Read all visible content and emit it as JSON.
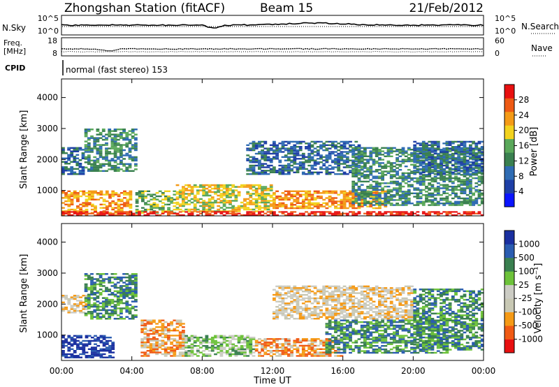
{
  "header": {
    "station": "Zhongshan Station (fitACF)",
    "beam": "Beam 15",
    "date": "21/Feb/2012"
  },
  "status": {
    "nsky_label": "N.Sky",
    "nsky_ticks": [
      "10^5",
      "10^0"
    ],
    "nsearch_label": "N.Search",
    "nsearch_ticks": [
      "10^5",
      "10^0"
    ],
    "freq_label_1": "Freq.",
    "freq_label_2": "[MHz]",
    "freq_ticks": [
      "18",
      "8"
    ],
    "nave_label": "Nave",
    "nave_ticks": [
      "60",
      "0"
    ],
    "cpid_label": "CPID",
    "cpid_text": "normal (fast stereo) 153"
  },
  "colors": {
    "power": [
      "#0a14ff",
      "#1e3fa6",
      "#2f6cb3",
      "#3a8050",
      "#5aa85a",
      "#f2d21e",
      "#f49a16",
      "#ee5a14",
      "#e81010"
    ],
    "velocity": [
      "#e81010",
      "#f05a14",
      "#f59a16",
      "#c8c8b4",
      "#ccccc4",
      "#6dc23a",
      "#3a8050",
      "#2a5cb0",
      "#1a2fa0"
    ]
  },
  "chart_data": [
    {
      "type": "heatmap",
      "quantity": "Power",
      "xlabel": "",
      "ylabel": "Slant Range [km]",
      "x_ticks": [
        "00:00",
        "04:00",
        "08:00",
        "12:00",
        "16:00",
        "20:00",
        "00:00"
      ],
      "y_ticks": [
        1000,
        2000,
        3000,
        4000
      ],
      "ylim": [
        180,
        4600
      ],
      "xlim_hours": [
        0,
        24
      ],
      "colorbar": {
        "label": "Power [dB]",
        "range": [
          0,
          32
        ],
        "ticks": [
          "4",
          "8",
          "12",
          "16",
          "20",
          "24",
          "28"
        ]
      },
      "regions": [
        {
          "t0": 0.0,
          "t1": 4.0,
          "r0": 250,
          "r1": 1000,
          "level": 6
        },
        {
          "t0": 0.0,
          "t1": 1.3,
          "r0": 1500,
          "r1": 2400,
          "level": 2
        },
        {
          "t0": 1.3,
          "t1": 4.3,
          "r0": 1600,
          "r1": 3000,
          "level": 3
        },
        {
          "t0": 4.2,
          "t1": 6.5,
          "r0": 250,
          "r1": 1000,
          "level": 4
        },
        {
          "t0": 6.5,
          "t1": 12.0,
          "r0": 300,
          "r1": 1200,
          "level": 5
        },
        {
          "t0": 10.5,
          "t1": 17.0,
          "r0": 1500,
          "r1": 2600,
          "level": 2
        },
        {
          "t0": 12.0,
          "t1": 18.5,
          "r0": 400,
          "r1": 1000,
          "level": 6
        },
        {
          "t0": 16.5,
          "t1": 24.0,
          "r0": 500,
          "r1": 2400,
          "level": 3
        },
        {
          "t0": 20.0,
          "t1": 24.0,
          "r0": 1500,
          "r1": 2600,
          "level": 2
        },
        {
          "t0": 0.0,
          "t1": 24.0,
          "r0": 180,
          "r1": 330,
          "level": 8
        }
      ]
    },
    {
      "type": "heatmap",
      "quantity": "Velocity",
      "xlabel": "Time UT",
      "ylabel": "Slant Range [km]",
      "x_ticks": [
        "00:00",
        "04:00",
        "08:00",
        "12:00",
        "16:00",
        "20:00",
        "00:00"
      ],
      "y_ticks": [
        1000,
        2000,
        3000,
        4000
      ],
      "ylim": [
        180,
        4600
      ],
      "xlim_hours": [
        0,
        24
      ],
      "colorbar": {
        "label": "Velocity [m s⁻¹]",
        "ticks": [
          "-1000",
          "-500",
          "-100",
          "-25",
          "25",
          "100",
          "500",
          "1000"
        ]
      },
      "regions": [
        {
          "t0": 0.0,
          "t1": 3.0,
          "r0": 250,
          "r1": 1000,
          "level": 8
        },
        {
          "t0": 0.0,
          "t1": 1.5,
          "r0": 1700,
          "r1": 2300,
          "level": 3
        },
        {
          "t0": 1.3,
          "t1": 4.3,
          "r0": 1500,
          "r1": 3000,
          "level": 6
        },
        {
          "t0": 4.5,
          "t1": 7.0,
          "r0": 300,
          "r1": 1500,
          "level": 2
        },
        {
          "t0": 7.0,
          "t1": 11.0,
          "r0": 300,
          "r1": 1000,
          "level": 5
        },
        {
          "t0": 11.0,
          "t1": 16.0,
          "r0": 300,
          "r1": 900,
          "level": 2
        },
        {
          "t0": 12.0,
          "t1": 20.0,
          "r0": 1500,
          "r1": 2600,
          "level": 3
        },
        {
          "t0": 15.0,
          "t1": 22.0,
          "r0": 400,
          "r1": 1500,
          "level": 6
        },
        {
          "t0": 20.0,
          "t1": 24.0,
          "r0": 500,
          "r1": 2500,
          "level": 6
        }
      ]
    }
  ]
}
